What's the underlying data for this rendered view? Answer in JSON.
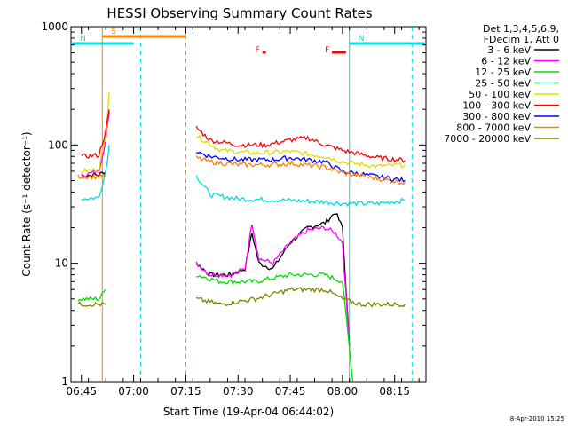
{
  "chart_data": {
    "type": "line",
    "title": "HESSI Observing Summary Count Rates",
    "xlabel": "Start Time (19-Apr-04 06:44:02)",
    "ylabel": "Count Rate (s⁻¹ detector⁻¹)",
    "y_scale": "log",
    "ylim": [
      1,
      1000
    ],
    "xlim": [
      "06:42",
      "08:24"
    ],
    "x_ticks": [
      "06:45",
      "07:00",
      "07:15",
      "07:30",
      "07:45",
      "08:00",
      "08:15"
    ],
    "y_ticks": [
      "1",
      "10",
      "100",
      "1000"
    ],
    "legend_header": [
      "Det 1,3,4,5,6,9,",
      "FDecim 1, Att 0"
    ],
    "legend_placement": "right",
    "footer": "8-Apr-2010 15:25",
    "series": [
      {
        "name": "3 - 6 keV",
        "color": "#000000",
        "segments": [
          {
            "x": [
              "06:45",
              "06:50",
              "06:52"
            ],
            "y": [
              55,
              56,
              60
            ]
          },
          {
            "x": [
              "07:18",
              "07:22",
              "07:28",
              "07:32",
              "07:34",
              "07:36",
              "07:40",
              "07:45",
              "07:50",
              "07:55",
              "07:58",
              "08:00",
              "08:02"
            ],
            "y": [
              10,
              8,
              8,
              9,
              18,
              10,
              9,
              15,
              20,
              22,
              27,
              20,
              2
            ]
          }
        ]
      },
      {
        "name": "6 - 12 keV",
        "color": "#ff00ff",
        "segments": [
          {
            "x": [
              "06:45",
              "06:50",
              "06:52",
              "06:53"
            ],
            "y": [
              55,
              60,
              110,
              190
            ]
          },
          {
            "x": [
              "07:18",
              "07:22",
              "07:28",
              "07:32",
              "07:34",
              "07:36",
              "07:40",
              "07:45",
              "07:50",
              "07:55",
              "07:58",
              "08:00",
              "08:02"
            ],
            "y": [
              10,
              8,
              8,
              9,
              22,
              11,
              10,
              15,
              19,
              20,
              18,
              15,
              2
            ]
          }
        ]
      },
      {
        "name": "12 - 25 keV",
        "color": "#00dd00",
        "segments": [
          {
            "x": [
              "06:44",
              "06:50",
              "06:52"
            ],
            "y": [
              5,
              5,
              6
            ]
          },
          {
            "x": [
              "07:18",
              "07:25",
              "07:35",
              "07:45",
              "07:55",
              "08:00",
              "08:03"
            ],
            "y": [
              8,
              7,
              7,
              8,
              8,
              7,
              1
            ]
          }
        ]
      },
      {
        "name": "25 - 50 keV",
        "color": "#00dddd",
        "segments": [
          {
            "x": [
              "06:45",
              "06:50",
              "06:52",
              "06:53"
            ],
            "y": [
              35,
              36,
              60,
              100
            ]
          },
          {
            "x": [
              "07:18",
              "07:22",
              "07:30",
              "07:45",
              "07:55",
              "08:00",
              "08:10",
              "08:18"
            ],
            "y": [
              55,
              38,
              35,
              34,
              33,
              32,
              32,
              34
            ]
          }
        ]
      },
      {
        "name": "50 - 100 keV",
        "color": "#dddd00",
        "segments": [
          {
            "x": [
              "06:45",
              "06:50",
              "06:52",
              "06:53"
            ],
            "y": [
              60,
              62,
              120,
              280
            ]
          },
          {
            "x": [
              "07:18",
              "07:25",
              "07:35",
              "07:45",
              "07:55",
              "08:00",
              "08:10",
              "08:18"
            ],
            "y": [
              120,
              90,
              85,
              88,
              80,
              72,
              66,
              68
            ]
          }
        ]
      },
      {
        "name": "100 - 300 keV",
        "color": "#ff0000",
        "segments": [
          {
            "x": [
              "06:45",
              "06:50",
              "06:52",
              "06:53"
            ],
            "y": [
              80,
              82,
              130,
              200
            ]
          },
          {
            "x": [
              "07:18",
              "07:22",
              "07:30",
              "07:38",
              "07:45",
              "07:50",
              "07:55",
              "08:00",
              "08:10",
              "08:18"
            ],
            "y": [
              140,
              110,
              100,
              100,
              110,
              115,
              100,
              90,
              78,
              74
            ]
          }
        ]
      },
      {
        "name": "300 - 800 keV",
        "color": "#0000ff",
        "segments": [
          {
            "x": [
              "07:18",
              "07:22",
              "07:30",
              "07:40",
              "07:45",
              "07:55",
              "08:00",
              "08:10",
              "08:18"
            ],
            "y": [
              88,
              80,
              75,
              75,
              78,
              72,
              60,
              54,
              50
            ]
          }
        ]
      },
      {
        "name": "800 - 7000 keV",
        "color": "#ff8000",
        "segments": [
          {
            "x": [
              "06:44",
              "06:50",
              "06:52"
            ],
            "y": [
              54,
              54,
              55
            ]
          },
          {
            "x": [
              "07:18",
              "07:22",
              "07:30",
              "07:40",
              "07:45",
              "07:55",
              "08:00",
              "08:10",
              "08:18"
            ],
            "y": [
              78,
              72,
              68,
              68,
              70,
              65,
              58,
              52,
              48
            ]
          }
        ]
      },
      {
        "name": "7000 - 20000 keV",
        "color": "#808000",
        "segments": [
          {
            "x": [
              "06:44",
              "06:50",
              "06:52"
            ],
            "y": [
              4.5,
              4.5,
              4.5
            ]
          },
          {
            "x": [
              "07:18",
              "07:25",
              "07:35",
              "07:45",
              "07:55",
              "08:00",
              "08:05",
              "08:10",
              "08:18"
            ],
            "y": [
              5,
              4.5,
              5,
              6,
              6,
              5,
              4.5,
              4.5,
              4.5
            ]
          }
        ]
      }
    ],
    "annotations": {
      "flags": [
        {
          "label": "S",
          "color": "#ff8000",
          "start": "06:51",
          "end": "07:15"
        },
        {
          "label": "N",
          "color": "#00dddd",
          "start": "06:42",
          "end": "07:00"
        },
        {
          "label": "N",
          "color": "#00dddd",
          "start": "08:02",
          "end": "08:24"
        },
        {
          "label": "F",
          "color": "#ff0000",
          "start": "07:37",
          "end": "07:38"
        },
        {
          "label": "F",
          "color": "#ff0000",
          "start": "07:57",
          "end": "08:01"
        }
      ],
      "vlines": [
        {
          "time": "06:51",
          "color": "#ff8000",
          "style": "solid"
        },
        {
          "time": "07:02",
          "color": "#00dddd",
          "style": "dashed"
        },
        {
          "time": "07:15",
          "color": "#ff8000",
          "style": "dashed"
        },
        {
          "time": "08:02",
          "color": "#00dddd",
          "style": "solid"
        },
        {
          "time": "08:20",
          "color": "#00dddd",
          "style": "dashed"
        }
      ]
    }
  }
}
